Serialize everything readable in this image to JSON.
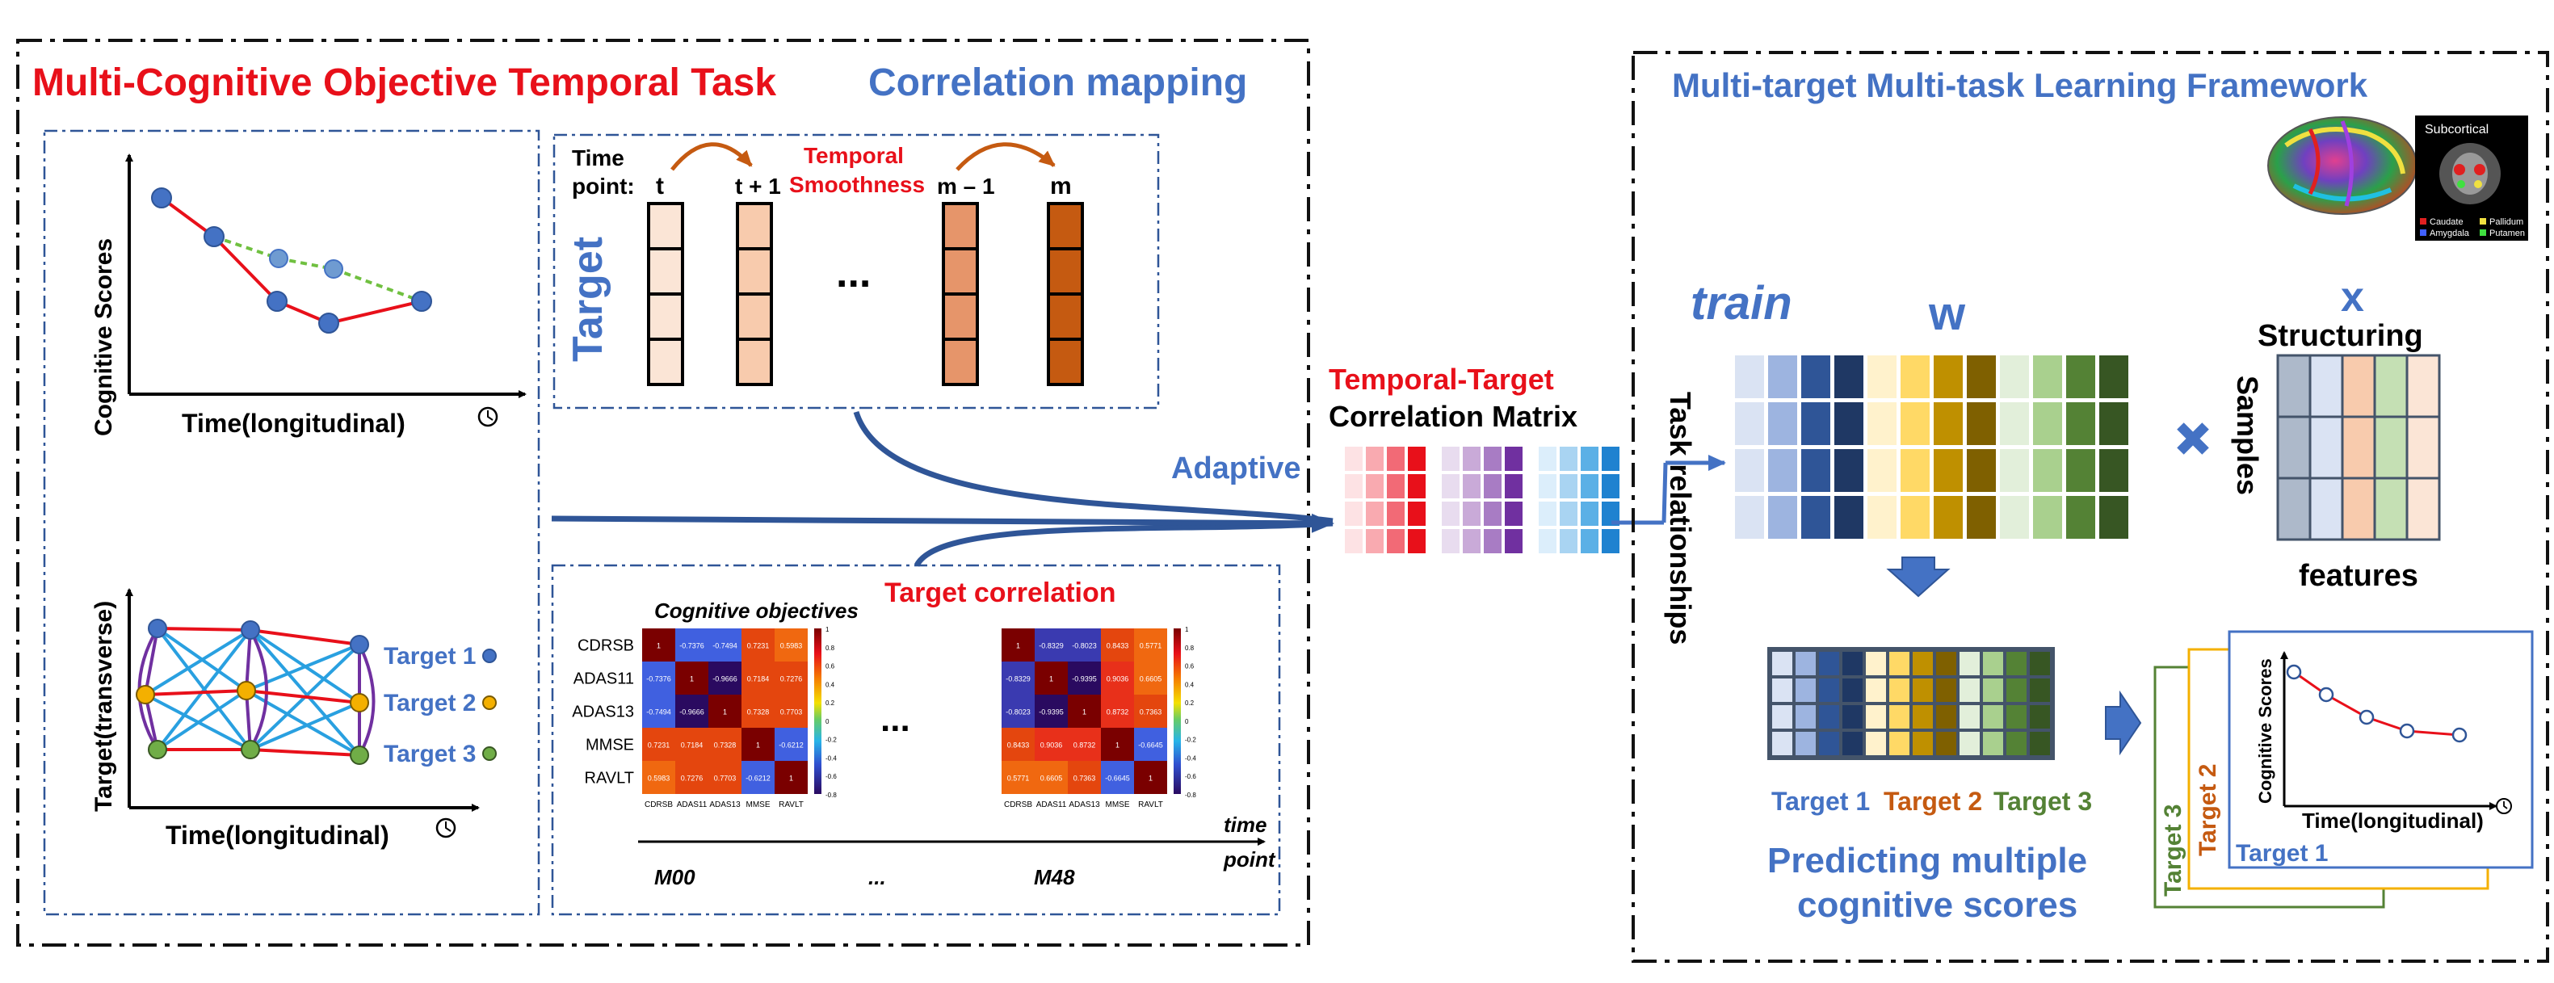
{
  "left_panel": {
    "title_red": "Multi-Cognitive Objective Temporal Task",
    "title_blue": "Correlation mapping",
    "plot1": {
      "ylabel": "Cognitive Scores",
      "xlabel": "Time(longitudinal)"
    },
    "plot2": {
      "ylabel": "Target(transverse)",
      "xlabel": "Time(longitudinal)",
      "legend": [
        "Target 1",
        "Target 2",
        "Target 3"
      ]
    },
    "temporal": {
      "time_point_label_1": "Time",
      "time_point_label_2": "point:",
      "points": [
        "t",
        "t + 1",
        "m – 1",
        "m"
      ],
      "smoothness_1": "Temporal",
      "smoothness_2": "Smoothness",
      "target_label": "Target",
      "ellipsis": "..."
    },
    "target_correlation": {
      "title": "Target correlation",
      "heatmap_title": "Cognitive objectives",
      "rows": [
        "CDRSB",
        "ADAS11",
        "ADAS13",
        "MMSE",
        "RAVLT"
      ],
      "cols": [
        "CDRSB",
        "ADAS11",
        "ADAS13",
        "MMSE",
        "RAVLT"
      ],
      "m00_values": [
        [
          "1",
          "-0.7376",
          "-0.7494",
          "0.7231",
          "0.5983"
        ],
        [
          "-0.7376",
          "1",
          "-0.9666",
          "0.7184",
          "0.7276"
        ],
        [
          "-0.7494",
          "-0.9666",
          "1",
          "0.7328",
          "0.7703"
        ],
        [
          "0.7231",
          "0.7184",
          "0.7328",
          "1",
          "-0.6212"
        ],
        [
          "0.5983",
          "0.7276",
          "0.7703",
          "-0.6212",
          "1"
        ]
      ],
      "m48_values": [
        [
          "1",
          "-0.8329",
          "-0.8023",
          "0.8433",
          "0.5771"
        ],
        [
          "-0.8329",
          "1",
          "-0.9395",
          "0.9036",
          "0.6605"
        ],
        [
          "-0.8023",
          "-0.9395",
          "1",
          "0.8732",
          "0.7363"
        ],
        [
          "0.8433",
          "0.9036",
          "0.8732",
          "1",
          "-0.6645"
        ],
        [
          "0.5771",
          "0.6605",
          "0.7363",
          "-0.6645",
          "1"
        ]
      ],
      "colorbar_ticks": [
        "1",
        "0.8",
        "0.6",
        "0.4",
        "0.2",
        "0",
        "-0.2",
        "-0.4",
        "-0.6",
        "-0.8"
      ],
      "ellipsis": "...",
      "label_m00": "M00",
      "label_dots": "...",
      "label_m48": "M48",
      "time_label_1": "time",
      "time_label_2": "point"
    }
  },
  "middle": {
    "adaptive": "Adaptive",
    "matrix_title_red": "Temporal-Target",
    "matrix_title_black": "Correlation Matrix"
  },
  "right_panel": {
    "title": "Multi-target Multi-task Learning Framework",
    "brain_inset": {
      "title": "Subcortical",
      "legend": [
        "Caudate",
        "Pallidum",
        "Amygdala",
        "Putamen"
      ]
    },
    "train": "train",
    "w": "w",
    "x": "x",
    "structuring": "Structuring",
    "samples": "Samples",
    "features": "features",
    "task_relationships": "Task relationships",
    "targets": [
      "Target 1",
      "Target 2",
      "Target 3"
    ],
    "predicting_1": "Predicting multiple",
    "predicting_2": "cognitive scores",
    "result_plot": {
      "ylabel": "Cognitive Scores",
      "xlabel": "Time(longitudinal)"
    },
    "stack_labels": [
      "Target 3",
      "Target 2",
      "Target 1"
    ]
  },
  "colors": {
    "red": "#e8101a",
    "blue": "#4472c4",
    "dark_blue": "#2f5597",
    "green": "#548235",
    "orange": "#c55a11",
    "gold": "#f4b000"
  }
}
